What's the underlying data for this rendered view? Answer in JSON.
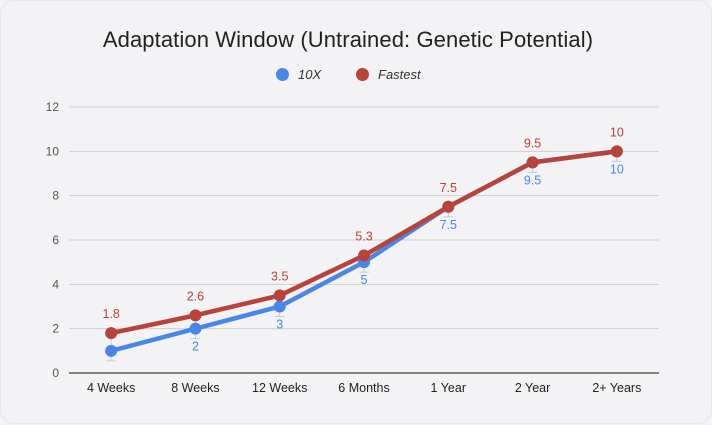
{
  "chart_data": {
    "type": "line",
    "title": "Adaptation Window (Untrained: Genetic Potential)",
    "categories": [
      "4 Weeks",
      "8 Weeks",
      "12 Weeks",
      "6 Months",
      "1 Year",
      "2 Year",
      "2+ Years"
    ],
    "series": [
      {
        "name": "10X",
        "color": "#4a86e8",
        "values": [
          1,
          2,
          3,
          5,
          7.5,
          9.5,
          10
        ],
        "labels": [
          "",
          "2",
          "3",
          "5",
          "7.5",
          "9.5",
          "10"
        ]
      },
      {
        "name": "Fastest",
        "color": "#b8433a",
        "values": [
          1.8,
          2.6,
          3.5,
          5.3,
          7.5,
          9.5,
          10
        ],
        "labels": [
          "1.8",
          "2.6",
          "3.5",
          "5.3",
          "7.5",
          "9.5",
          "10"
        ]
      }
    ],
    "yticks": [
      "0",
      "2",
      "4",
      "6",
      "8",
      "10",
      "12"
    ],
    "ylim": [
      0,
      12
    ],
    "grid": true,
    "legend_position": "top"
  }
}
